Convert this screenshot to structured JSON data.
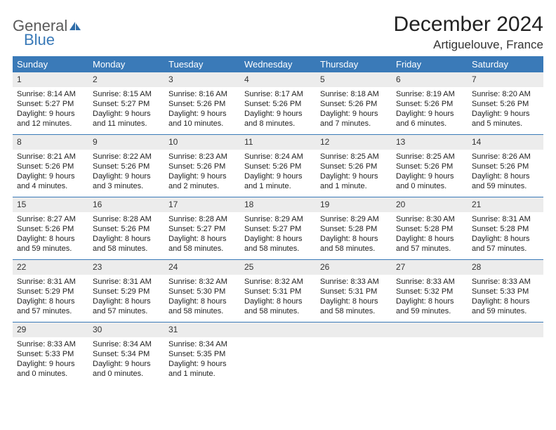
{
  "logo": {
    "general": "General",
    "blue": "Blue"
  },
  "title": "December 2024",
  "location": "Artiguelouve, France",
  "colors": {
    "header_bg": "#3a7ab8",
    "daynum_bg": "#ececec",
    "border": "#3a7ab8",
    "logo_gray": "#5a5a5a",
    "logo_blue": "#3a7ab8"
  },
  "day_names": [
    "Sunday",
    "Monday",
    "Tuesday",
    "Wednesday",
    "Thursday",
    "Friday",
    "Saturday"
  ],
  "weeks": [
    [
      {
        "n": "1",
        "sr": "Sunrise: 8:14 AM",
        "ss": "Sunset: 5:27 PM",
        "dl": "Daylight: 9 hours and 12 minutes."
      },
      {
        "n": "2",
        "sr": "Sunrise: 8:15 AM",
        "ss": "Sunset: 5:27 PM",
        "dl": "Daylight: 9 hours and 11 minutes."
      },
      {
        "n": "3",
        "sr": "Sunrise: 8:16 AM",
        "ss": "Sunset: 5:26 PM",
        "dl": "Daylight: 9 hours and 10 minutes."
      },
      {
        "n": "4",
        "sr": "Sunrise: 8:17 AM",
        "ss": "Sunset: 5:26 PM",
        "dl": "Daylight: 9 hours and 8 minutes."
      },
      {
        "n": "5",
        "sr": "Sunrise: 8:18 AM",
        "ss": "Sunset: 5:26 PM",
        "dl": "Daylight: 9 hours and 7 minutes."
      },
      {
        "n": "6",
        "sr": "Sunrise: 8:19 AM",
        "ss": "Sunset: 5:26 PM",
        "dl": "Daylight: 9 hours and 6 minutes."
      },
      {
        "n": "7",
        "sr": "Sunrise: 8:20 AM",
        "ss": "Sunset: 5:26 PM",
        "dl": "Daylight: 9 hours and 5 minutes."
      }
    ],
    [
      {
        "n": "8",
        "sr": "Sunrise: 8:21 AM",
        "ss": "Sunset: 5:26 PM",
        "dl": "Daylight: 9 hours and 4 minutes."
      },
      {
        "n": "9",
        "sr": "Sunrise: 8:22 AM",
        "ss": "Sunset: 5:26 PM",
        "dl": "Daylight: 9 hours and 3 minutes."
      },
      {
        "n": "10",
        "sr": "Sunrise: 8:23 AM",
        "ss": "Sunset: 5:26 PM",
        "dl": "Daylight: 9 hours and 2 minutes."
      },
      {
        "n": "11",
        "sr": "Sunrise: 8:24 AM",
        "ss": "Sunset: 5:26 PM",
        "dl": "Daylight: 9 hours and 1 minute."
      },
      {
        "n": "12",
        "sr": "Sunrise: 8:25 AM",
        "ss": "Sunset: 5:26 PM",
        "dl": "Daylight: 9 hours and 1 minute."
      },
      {
        "n": "13",
        "sr": "Sunrise: 8:25 AM",
        "ss": "Sunset: 5:26 PM",
        "dl": "Daylight: 9 hours and 0 minutes."
      },
      {
        "n": "14",
        "sr": "Sunrise: 8:26 AM",
        "ss": "Sunset: 5:26 PM",
        "dl": "Daylight: 8 hours and 59 minutes."
      }
    ],
    [
      {
        "n": "15",
        "sr": "Sunrise: 8:27 AM",
        "ss": "Sunset: 5:26 PM",
        "dl": "Daylight: 8 hours and 59 minutes."
      },
      {
        "n": "16",
        "sr": "Sunrise: 8:28 AM",
        "ss": "Sunset: 5:26 PM",
        "dl": "Daylight: 8 hours and 58 minutes."
      },
      {
        "n": "17",
        "sr": "Sunrise: 8:28 AM",
        "ss": "Sunset: 5:27 PM",
        "dl": "Daylight: 8 hours and 58 minutes."
      },
      {
        "n": "18",
        "sr": "Sunrise: 8:29 AM",
        "ss": "Sunset: 5:27 PM",
        "dl": "Daylight: 8 hours and 58 minutes."
      },
      {
        "n": "19",
        "sr": "Sunrise: 8:29 AM",
        "ss": "Sunset: 5:28 PM",
        "dl": "Daylight: 8 hours and 58 minutes."
      },
      {
        "n": "20",
        "sr": "Sunrise: 8:30 AM",
        "ss": "Sunset: 5:28 PM",
        "dl": "Daylight: 8 hours and 57 minutes."
      },
      {
        "n": "21",
        "sr": "Sunrise: 8:31 AM",
        "ss": "Sunset: 5:28 PM",
        "dl": "Daylight: 8 hours and 57 minutes."
      }
    ],
    [
      {
        "n": "22",
        "sr": "Sunrise: 8:31 AM",
        "ss": "Sunset: 5:29 PM",
        "dl": "Daylight: 8 hours and 57 minutes."
      },
      {
        "n": "23",
        "sr": "Sunrise: 8:31 AM",
        "ss": "Sunset: 5:29 PM",
        "dl": "Daylight: 8 hours and 57 minutes."
      },
      {
        "n": "24",
        "sr": "Sunrise: 8:32 AM",
        "ss": "Sunset: 5:30 PM",
        "dl": "Daylight: 8 hours and 58 minutes."
      },
      {
        "n": "25",
        "sr": "Sunrise: 8:32 AM",
        "ss": "Sunset: 5:31 PM",
        "dl": "Daylight: 8 hours and 58 minutes."
      },
      {
        "n": "26",
        "sr": "Sunrise: 8:33 AM",
        "ss": "Sunset: 5:31 PM",
        "dl": "Daylight: 8 hours and 58 minutes."
      },
      {
        "n": "27",
        "sr": "Sunrise: 8:33 AM",
        "ss": "Sunset: 5:32 PM",
        "dl": "Daylight: 8 hours and 59 minutes."
      },
      {
        "n": "28",
        "sr": "Sunrise: 8:33 AM",
        "ss": "Sunset: 5:33 PM",
        "dl": "Daylight: 8 hours and 59 minutes."
      }
    ],
    [
      {
        "n": "29",
        "sr": "Sunrise: 8:33 AM",
        "ss": "Sunset: 5:33 PM",
        "dl": "Daylight: 9 hours and 0 minutes."
      },
      {
        "n": "30",
        "sr": "Sunrise: 8:34 AM",
        "ss": "Sunset: 5:34 PM",
        "dl": "Daylight: 9 hours and 0 minutes."
      },
      {
        "n": "31",
        "sr": "Sunrise: 8:34 AM",
        "ss": "Sunset: 5:35 PM",
        "dl": "Daylight: 9 hours and 1 minute."
      },
      {
        "empty": true
      },
      {
        "empty": true
      },
      {
        "empty": true
      },
      {
        "empty": true
      }
    ]
  ]
}
